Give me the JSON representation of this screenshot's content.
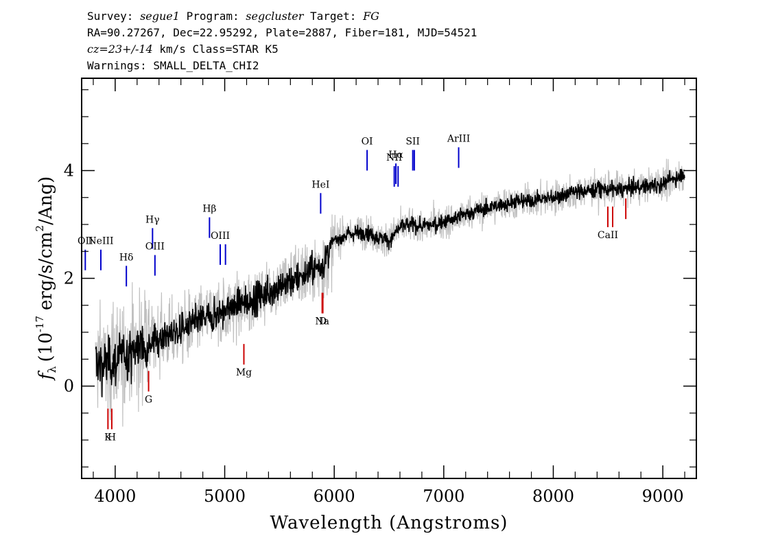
{
  "header": {
    "survey_label": "Survey:",
    "survey": "segue1",
    "program_label": "Program:",
    "program": "segcluster",
    "target_label": "Target:",
    "target": "FG",
    "line2": "RA=90.27267, Dec=22.95292, Plate=2887, Fiber=181, MJD=54521",
    "cz": "cz=23+/-14",
    "line3_rest": "km/s Class=STAR K5",
    "line4": "Warnings: SMALL_DELTA_CHI2"
  },
  "chart_data": {
    "type": "line",
    "xlabel": "Wavelength (Angstroms)",
    "ylabel_prefix": "f",
    "ylabel_sub": "λ",
    "ylabel_open": "(10",
    "ylabel_exp": "-17",
    "ylabel_mid": "erg/s/cm",
    "ylabel_exp2": "2",
    "ylabel_tail": "/Ang)",
    "xlim": [
      3700,
      9300
    ],
    "ylim": [
      -1.7,
      5.7
    ],
    "x_ticks": [
      4000,
      5000,
      6000,
      7000,
      8000,
      9000
    ],
    "x_tick_labels": [
      "4000",
      "5000",
      "6000",
      "7000",
      "8000",
      "9000"
    ],
    "y_ticks": [
      0,
      2,
      4
    ],
    "y_tick_labels": [
      "0",
      "2",
      "4"
    ],
    "colors": {
      "flux": "#000000",
      "noise": "#c0c0c0",
      "emission": "#0000cc",
      "absorption": "#cc0000"
    },
    "series": [
      {
        "x": [
          3820,
          3900,
          4000,
          4100,
          4200,
          4300,
          4400,
          4500,
          4600,
          4700,
          4800,
          4900,
          5000,
          5100,
          5200,
          5300,
          5400,
          5500,
          5600,
          5700,
          5800,
          5850,
          5900,
          5950,
          6000,
          6100,
          6200,
          6300,
          6400,
          6500,
          6600,
          6700,
          6800,
          6900,
          7000,
          7100,
          7200,
          7400,
          7600,
          7800,
          8000,
          8200,
          8400,
          8600,
          8800,
          9000,
          9100,
          9200
        ],
        "y": [
          0.45,
          0.4,
          0.45,
          0.6,
          0.7,
          0.8,
          0.9,
          0.95,
          1.05,
          1.15,
          1.25,
          1.3,
          1.4,
          1.5,
          1.55,
          1.65,
          1.75,
          1.85,
          1.95,
          2.05,
          2.15,
          2.2,
          2.25,
          2.45,
          2.7,
          2.8,
          2.85,
          2.85,
          2.75,
          2.7,
          2.95,
          3.0,
          2.95,
          3.0,
          3.05,
          3.1,
          3.2,
          3.3,
          3.4,
          3.45,
          3.5,
          3.6,
          3.65,
          3.65,
          3.7,
          3.75,
          3.85,
          3.95
        ]
      }
    ],
    "emission_lines": [
      {
        "label": "OII",
        "wave": 3727,
        "y": 2.15,
        "bold": false
      },
      {
        "label": "NeIII",
        "wave": 3869,
        "y": 2.15,
        "bold": false
      },
      {
        "label": "Hδ",
        "wave": 4102,
        "y": 1.85,
        "bold": false
      },
      {
        "label": "Hγ",
        "wave": 4341,
        "y": 2.55,
        "bold": false
      },
      {
        "label": "OIII",
        "wave": 4363,
        "y": 2.05,
        "bold": false
      },
      {
        "label": "Hβ",
        "wave": 4861,
        "y": 2.75,
        "bold": false
      },
      {
        "label": "OIII",
        "wave": 4959,
        "y": 2.25,
        "bold": false
      },
      {
        "label": "OIII",
        "wave": 5007,
        "y": 2.25,
        "bold": true
      },
      {
        "label": "HeI",
        "wave": 5876,
        "y": 3.2,
        "bold": false
      },
      {
        "label": "OI",
        "wave": 6300,
        "y": 4.0,
        "bold": false
      },
      {
        "label": "NII",
        "wave": 6548,
        "y": 3.7,
        "bold": false
      },
      {
        "label": "Hα",
        "wave": 6563,
        "y": 3.75,
        "bold": false
      },
      {
        "label": "NII",
        "wave": 6583,
        "y": 3.7,
        "bold": true
      },
      {
        "label": "SII",
        "wave": 6717,
        "y": 4.0,
        "bold": false
      },
      {
        "label": "SII",
        "wave": 6731,
        "y": 4.0,
        "bold": true
      },
      {
        "label": "ArIII",
        "wave": 7136,
        "y": 4.05,
        "bold": false
      }
    ],
    "absorption_lines": [
      {
        "label": "K",
        "wave": 3934,
        "y": -0.8,
        "bold": false
      },
      {
        "label": "H",
        "wave": 3969,
        "y": -0.8,
        "bold": false
      },
      {
        "label": "G",
        "wave": 4305,
        "y": -0.1,
        "bold": false
      },
      {
        "label": "Mg",
        "wave": 5175,
        "y": 0.4,
        "bold": false
      },
      {
        "label": "Na",
        "wave": 5890,
        "y": 1.35,
        "bold": false
      },
      {
        "label": "D",
        "wave": 5896,
        "y": 1.35,
        "bold": false
      },
      {
        "label": "CaII",
        "wave": 8498,
        "y": 2.95,
        "bold": false
      },
      {
        "label": "CaII",
        "wave": 8542,
        "y": 2.95,
        "bold": true
      },
      {
        "label": "CaII",
        "wave": 8662,
        "y": 3.1,
        "bold": true
      }
    ]
  }
}
